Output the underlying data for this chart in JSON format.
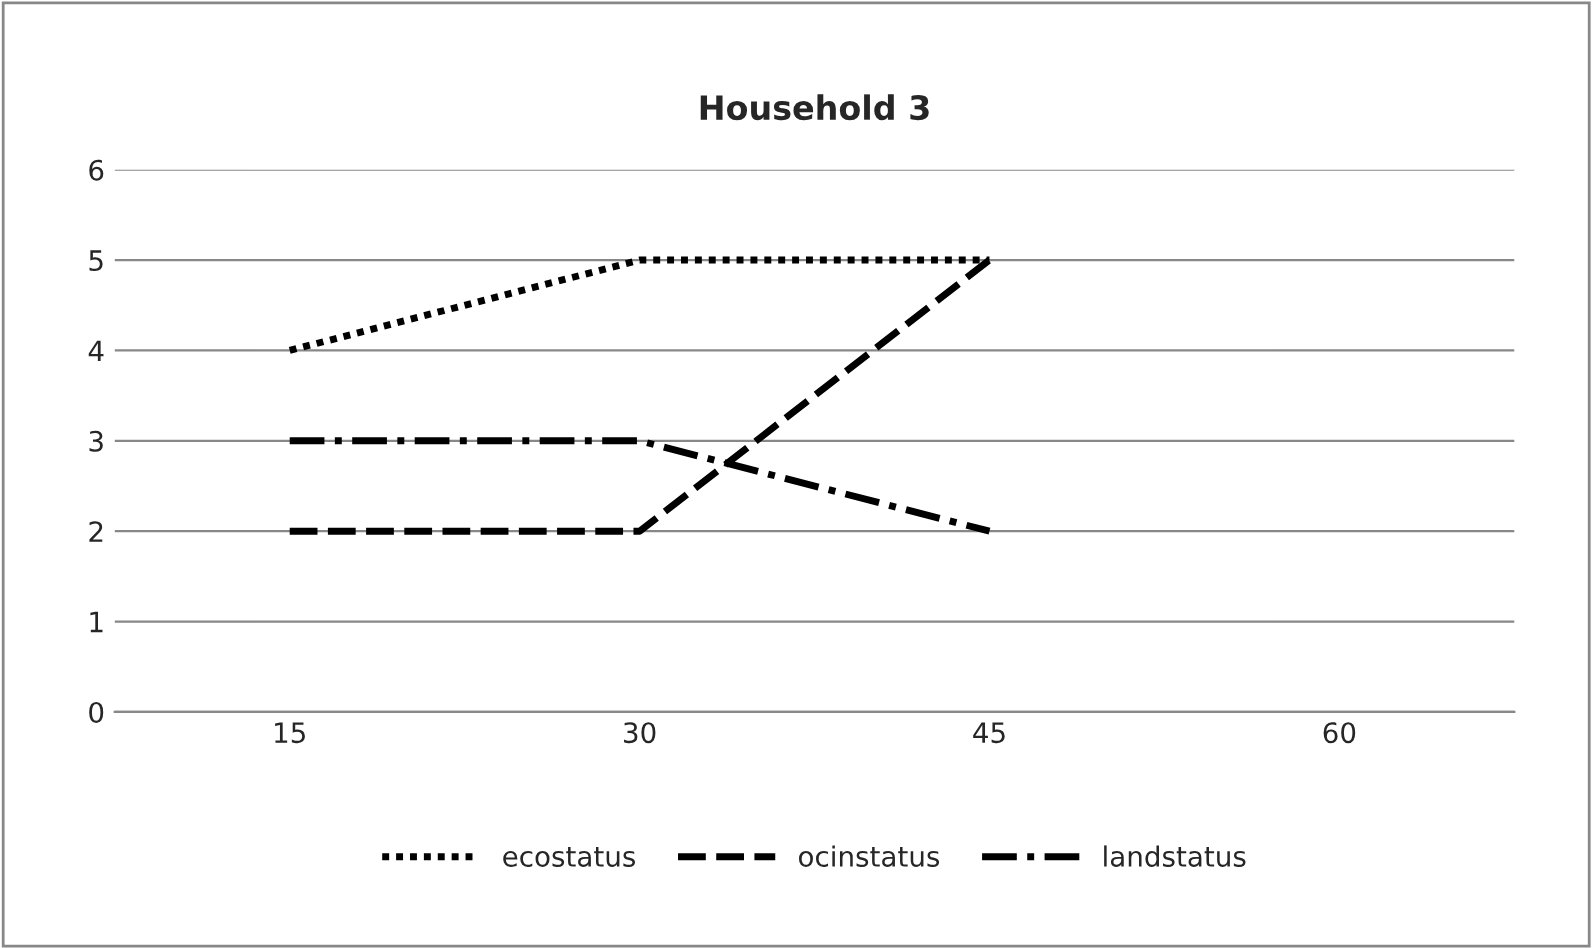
{
  "chart_data": {
    "type": "line",
    "title": "Household 3",
    "categories": [
      "15",
      "30",
      "45",
      "60"
    ],
    "series": [
      {
        "name": "ecostatus",
        "color": "#000000",
        "line_style": "dotted",
        "values": [
          4,
          5,
          5,
          null
        ]
      },
      {
        "name": "ocinstatus",
        "color": "#000000",
        "line_style": "dashed",
        "values": [
          2,
          2,
          5,
          null
        ]
      },
      {
        "name": "landstatus",
        "color": "#000000",
        "line_style": "dashdot",
        "values": [
          3,
          3,
          2,
          null
        ]
      }
    ],
    "ylim": [
      0,
      6
    ],
    "yticks": [
      0,
      1,
      2,
      3,
      4,
      5,
      6
    ],
    "grid": "y",
    "legend": "bottom",
    "marker": "none"
  }
}
